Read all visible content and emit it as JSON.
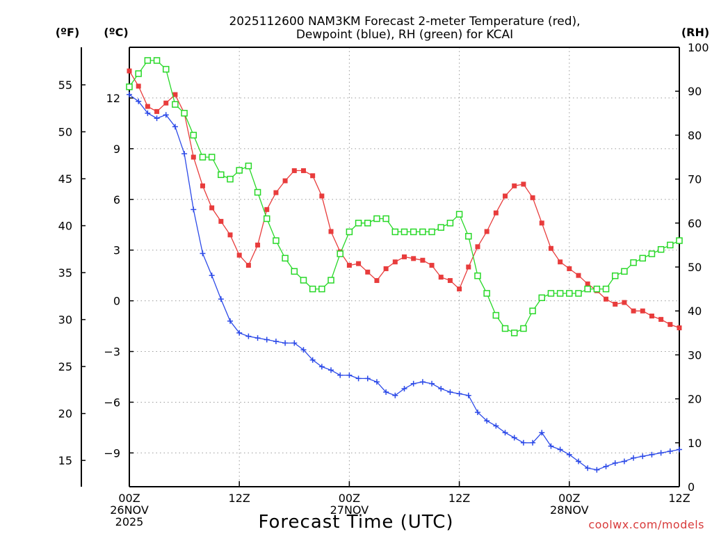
{
  "title": {
    "line1": "2025112600 NAM3KM Forecast 2-meter Temperature (red),",
    "line2": "Dewpoint (blue), RH (green) for KCAI"
  },
  "units": {
    "fahrenheit": "(ºF)",
    "celsius": "(ºC)",
    "rh": "(RH)"
  },
  "x_axis": {
    "title": "Forecast Time (UTC)",
    "ticks": [
      {
        "hour": 0,
        "lines": [
          "00Z",
          "26NOV",
          "2025"
        ]
      },
      {
        "hour": 12,
        "lines": [
          "12Z"
        ]
      },
      {
        "hour": 24,
        "lines": [
          "00Z",
          "27NOV"
        ]
      },
      {
        "hour": 36,
        "lines": [
          "12Z"
        ]
      },
      {
        "hour": 48,
        "lines": [
          "00Z",
          "28NOV"
        ]
      },
      {
        "hour": 60,
        "lines": [
          "12Z"
        ]
      }
    ]
  },
  "credit": "coolwx.com/models",
  "chart_data": {
    "type": "line",
    "title": "2025112600 NAM3KM Forecast 2-meter Temperature (red), Dewpoint (blue), RH (green) for KCAI",
    "xlabel": "Forecast Time (UTC)",
    "x": [
      0,
      1,
      2,
      3,
      4,
      5,
      6,
      7,
      8,
      9,
      10,
      11,
      12,
      13,
      14,
      15,
      16,
      17,
      18,
      19,
      20,
      21,
      22,
      23,
      24,
      25,
      26,
      27,
      28,
      29,
      30,
      31,
      32,
      33,
      34,
      35,
      36,
      37,
      38,
      39,
      40,
      41,
      42,
      43,
      44,
      45,
      46,
      47,
      48,
      49,
      50,
      51,
      52,
      53,
      54,
      55,
      56,
      57,
      58,
      59,
      60
    ],
    "xlim": [
      0,
      60
    ],
    "y_left_celsius": {
      "range": [
        -11,
        15
      ],
      "ticks": [
        "12",
        "9",
        "6",
        "3",
        "0",
        "−3",
        "−6",
        "−9"
      ],
      "tick_values": [
        12,
        9,
        6,
        3,
        0,
        -3,
        -6,
        -9
      ]
    },
    "y_left_fahrenheit": {
      "ticks": [
        "55",
        "50",
        "45",
        "40",
        "35",
        "30",
        "25",
        "20",
        "15"
      ],
      "tick_values": [
        55,
        50,
        45,
        40,
        35,
        30,
        25,
        20,
        15
      ]
    },
    "y_right_rh": {
      "range": [
        0,
        100
      ],
      "ticks": [
        "100",
        "90",
        "80",
        "70",
        "60",
        "50",
        "40",
        "30",
        "20",
        "10",
        "0"
      ],
      "tick_values": [
        100,
        90,
        80,
        70,
        60,
        50,
        40,
        30,
        20,
        10,
        0
      ]
    },
    "series": [
      {
        "name": "2-meter Temperature",
        "axis": "celsius",
        "color": "#e83c3c",
        "marker": "filled-square",
        "values": [
          13.6,
          12.7,
          11.5,
          11.2,
          11.7,
          12.2,
          11.1,
          8.5,
          6.8,
          5.5,
          4.7,
          3.9,
          2.7,
          2.1,
          3.3,
          5.4,
          6.4,
          7.1,
          7.7,
          7.7,
          7.4,
          6.2,
          4.1,
          2.9,
          2.1,
          2.2,
          1.7,
          1.2,
          1.9,
          2.3,
          2.6,
          2.5,
          2.4,
          2.1,
          1.4,
          1.2,
          0.7,
          2.0,
          3.2,
          4.1,
          5.2,
          6.2,
          6.8,
          6.9,
          6.1,
          4.6,
          3.1,
          2.3,
          1.9,
          1.5,
          1.0,
          0.6,
          0.1,
          -0.2,
          -0.1,
          -0.6,
          -0.6,
          -0.9,
          -1.1,
          -1.4,
          -1.6
        ]
      },
      {
        "name": "Dewpoint",
        "axis": "celsius",
        "color": "#2b49e8",
        "marker": "plus",
        "values": [
          12.2,
          11.8,
          11.1,
          10.8,
          11.0,
          10.3,
          8.7,
          5.4,
          2.8,
          1.5,
          0.1,
          -1.2,
          -1.9,
          -2.1,
          -2.2,
          -2.3,
          -2.4,
          -2.5,
          -2.5,
          -2.9,
          -3.5,
          -3.9,
          -4.1,
          -4.4,
          -4.4,
          -4.6,
          -4.6,
          -4.8,
          -5.4,
          -5.6,
          -5.2,
          -4.9,
          -4.8,
          -4.9,
          -5.2,
          -5.4,
          -5.5,
          -5.6,
          -6.6,
          -7.1,
          -7.4,
          -7.8,
          -8.1,
          -8.4,
          -8.4,
          -7.8,
          -8.6,
          -8.8,
          -9.1,
          -9.5,
          -9.9,
          -10.0,
          -9.8,
          -9.6,
          -9.5,
          -9.3,
          -9.2,
          -9.1,
          -9.0,
          -8.9,
          -8.8
        ]
      },
      {
        "name": "RH",
        "axis": "rh",
        "color": "#27d827",
        "marker": "open-square",
        "values": [
          91,
          94,
          97,
          97,
          95,
          87,
          85,
          80,
          75,
          75,
          71,
          70,
          72,
          73,
          67,
          61,
          56,
          52,
          49,
          47,
          45,
          45,
          47,
          53,
          58,
          60,
          60,
          61,
          61,
          58,
          58,
          58,
          58,
          58,
          59,
          60,
          62,
          57,
          48,
          44,
          39,
          36,
          35,
          36,
          40,
          43,
          44,
          44,
          44,
          44,
          45,
          45,
          45,
          48,
          49,
          51,
          52,
          53,
          54,
          55,
          56
        ]
      }
    ]
  }
}
